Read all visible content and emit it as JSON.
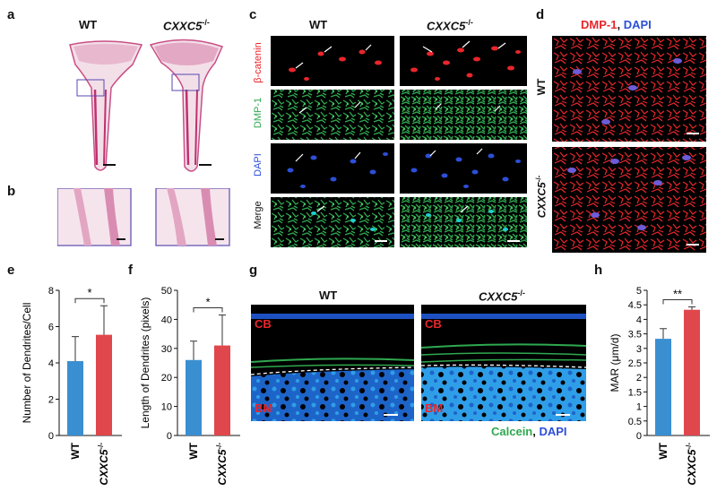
{
  "panels": {
    "a": "a",
    "b": "b",
    "c": "c",
    "d": "d",
    "e": "e",
    "f": "f",
    "g": "g",
    "h": "h"
  },
  "genotypes": {
    "wt": "WT",
    "ko": "CXXC5",
    "ko_sup": "-/-"
  },
  "panel_c": {
    "row_labels": [
      "β-catenin",
      "DMP-1",
      "DAPI",
      "Merge"
    ]
  },
  "panel_d": {
    "title_red": "DMP-1",
    "title_sep": ", ",
    "title_blue": "DAPI"
  },
  "panel_g": {
    "cb": "CB",
    "bm": "BM",
    "legend_green": "Calcein",
    "legend_sep": ", ",
    "legend_blue": "DAPI"
  },
  "colors": {
    "wt_bar": "#3a8fd1",
    "ko_bar": "#e0474c",
    "red": "#e8262b",
    "green": "#2fa84f",
    "blue": "#2d4fd8"
  },
  "chart_data": [
    {
      "type": "bar",
      "panel": "e",
      "categories": [
        "WT",
        "CXXC5 -/-"
      ],
      "values": [
        4.1,
        5.55
      ],
      "errors": [
        1.35,
        1.6
      ],
      "ylabel": "Number of Dendrites/Cell",
      "ylim": [
        0,
        8
      ],
      "yticks": [
        0,
        2,
        4,
        6,
        8
      ],
      "significance": "*"
    },
    {
      "type": "bar",
      "panel": "f",
      "categories": [
        "WT",
        "CXXC5 -/-"
      ],
      "values": [
        26,
        31
      ],
      "errors": [
        6.5,
        10.5
      ],
      "ylabel": "Length of Dendrites (pixels)",
      "ylim": [
        0,
        50
      ],
      "yticks": [
        0,
        10,
        20,
        30,
        40,
        50
      ],
      "significance": "*"
    },
    {
      "type": "bar",
      "panel": "h",
      "categories": [
        "WT",
        "CXXC5 -/-"
      ],
      "values": [
        3.33,
        4.33
      ],
      "errors": [
        0.35,
        0.1
      ],
      "ylabel": "MAR (μm/d)",
      "ylim": [
        0,
        5
      ],
      "yticks": [
        0,
        0.5,
        1,
        1.5,
        2,
        2.5,
        3,
        3.5,
        4,
        4.5,
        5
      ],
      "significance": "**"
    }
  ]
}
